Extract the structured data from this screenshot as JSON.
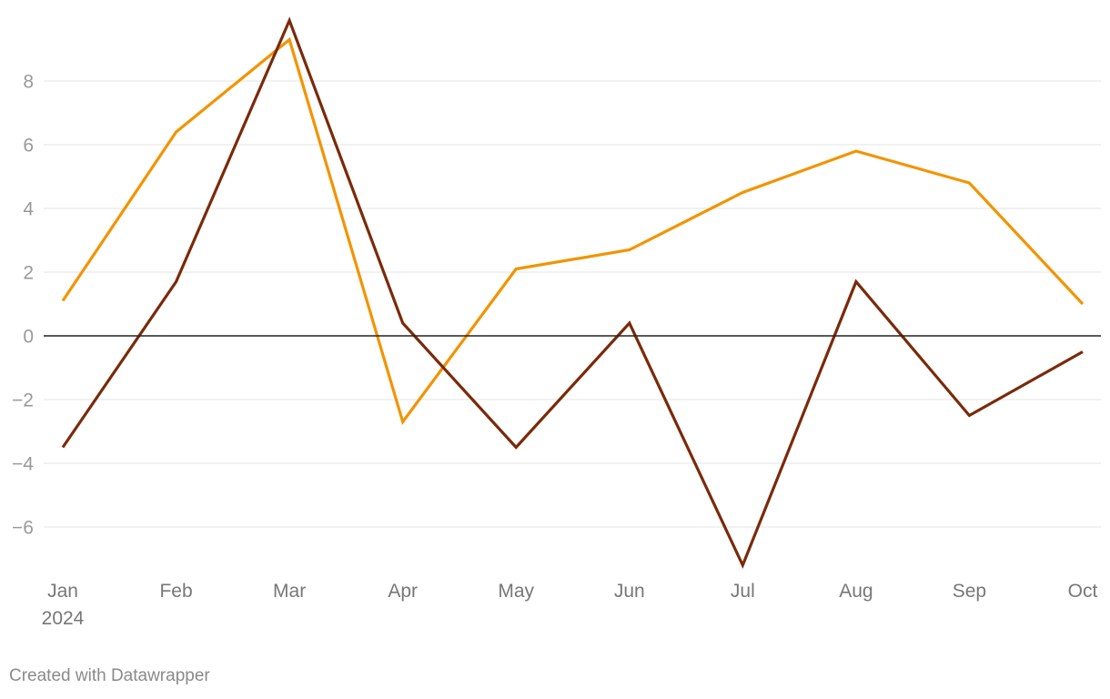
{
  "chart_data": {
    "type": "line",
    "title": "",
    "xlabel": "",
    "ylabel": "",
    "categories": [
      "Jan",
      "Feb",
      "Mar",
      "Apr",
      "May",
      "Jun",
      "Jul",
      "Aug",
      "Sep",
      "Oct"
    ],
    "category_sublabels": [
      "2024",
      "",
      "",
      "",
      "",
      "",
      "",
      "",
      "",
      ""
    ],
    "y_ticks": [
      -6,
      -4,
      -2,
      0,
      2,
      4,
      6,
      8
    ],
    "y_tick_labels": [
      "−6",
      "−4",
      "−2",
      "0",
      "2",
      "4",
      "6",
      "8"
    ],
    "ylim": [
      -7.3,
      10.0
    ],
    "grid": true,
    "zero_line": true,
    "legend": "none",
    "series": [
      {
        "color": "#f29400",
        "values": [
          1.1,
          6.4,
          9.3,
          -2.7,
          2.1,
          2.7,
          4.5,
          5.8,
          4.8,
          1.0
        ]
      },
      {
        "color": "#7a2a0a",
        "values": [
          -3.5,
          1.7,
          9.9,
          0.4,
          -3.5,
          0.4,
          -7.2,
          1.7,
          -2.5,
          -0.5
        ]
      }
    ]
  },
  "footer": {
    "credit": "Created with Datawrapper"
  }
}
